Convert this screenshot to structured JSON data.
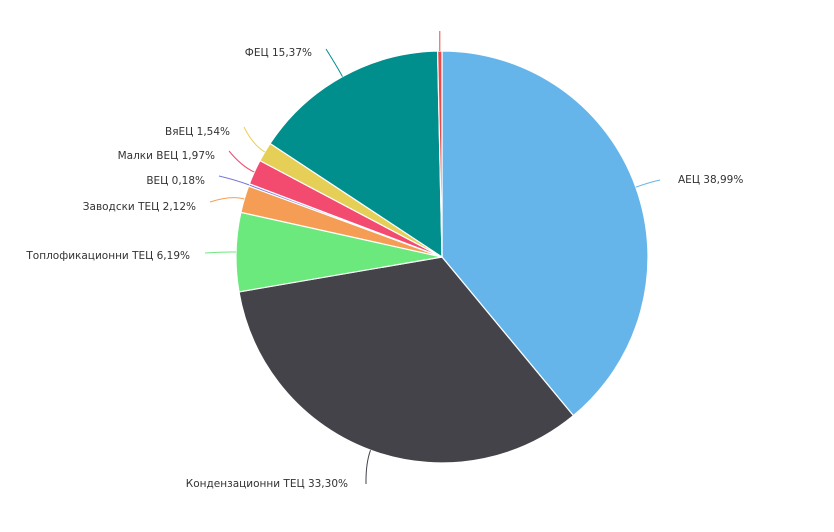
{
  "chart_data": {
    "type": "pie",
    "series": [
      {
        "name": "",
        "slices": [
          {
            "name": "АЕЦ",
            "value": 38.99,
            "label": "АЕЦ 38,99%",
            "color": "#65B5EA"
          },
          {
            "name": "Кондензационни ТЕЦ",
            "value": 33.3,
            "label": "Кондензационни ТЕЦ 33,30%",
            "color": "#434349"
          },
          {
            "name": "Топлофикационни ТЕЦ",
            "value": 6.19,
            "label": "Топлофикационни ТЕЦ 6,19%",
            "color": "#6BE97D"
          },
          {
            "name": "Заводски ТЕЦ",
            "value": 2.12,
            "label": "Заводски ТЕЦ 2,12%",
            "color": "#F59D55"
          },
          {
            "name": "ВЕЦ",
            "value": 0.18,
            "label": "ВЕЦ 0,18%",
            "color": "#7777DD"
          },
          {
            "name": "Малки ВЕЦ",
            "value": 1.97,
            "label": "Малки ВЕЦ 1,97%",
            "color": "#F24B6F"
          },
          {
            "name": "ВяЕЦ",
            "value": 1.54,
            "label": "ВяЕЦ 1,54%",
            "color": "#E6CF56"
          },
          {
            "name": "ФЕЦ",
            "value": 15.37,
            "label": "ФЕЦ 15,37%",
            "color": "#008F8C"
          },
          {
            "name": "",
            "value": 0.34,
            "label": "",
            "color": "#E84A4A"
          }
        ]
      }
    ],
    "title": "",
    "legend": "none",
    "start_angle": "top",
    "direction": "clockwise"
  }
}
